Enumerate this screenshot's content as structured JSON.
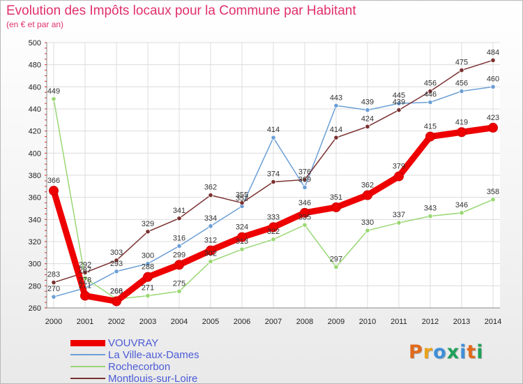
{
  "header": {
    "title": "Evolution des Impôts locaux pour la Commune par Habitant",
    "subtitle": "(en € et par an)"
  },
  "logo": {
    "text": "Proxiti",
    "letter_colors": [
      "#e06a1c",
      "#e8a21c",
      "#3f8fd8",
      "#1fa05a",
      "#3f8fd8",
      "#e06a1c",
      "#1fa05a"
    ]
  },
  "chart_data": {
    "type": "line",
    "title": "Evolution des Impôts locaux pour la Commune par Habitant",
    "subtitle": "(en € et par an)",
    "x": [
      "2000",
      "2001",
      "2002",
      "2003",
      "2004",
      "2005",
      "2006",
      "2007",
      "2008",
      "2009",
      "2010",
      "2011",
      "2012",
      "2013",
      "2014"
    ],
    "ylim": [
      260,
      500
    ],
    "yticks": [
      260,
      280,
      300,
      320,
      340,
      360,
      380,
      400,
      420,
      440,
      460,
      480,
      500
    ],
    "grid": true,
    "legend_position": "bottom-left",
    "series": [
      {
        "name": "VOUVRAY",
        "color": "#ee0000",
        "emphasis": true,
        "values": [
          366,
          271,
          266,
          288,
          299,
          312,
          324,
          333,
          346,
          351,
          362,
          379,
          415,
          419,
          423
        ],
        "labels": [
          "366",
          "271",
          "266",
          "288",
          "299",
          "312",
          "324",
          "333",
          "346",
          "351",
          "362",
          "379",
          "415",
          "419",
          "423"
        ]
      },
      {
        "name": "La Ville-aux-Dames",
        "color": "#6b9fd6",
        "emphasis": false,
        "values": [
          270,
          278,
          293,
          300,
          316,
          334,
          352,
          414,
          369,
          443,
          439,
          445,
          446,
          456,
          460
        ],
        "labels": [
          "270",
          "278",
          "293",
          "300",
          "316",
          "334",
          "352",
          "414",
          "369",
          "443",
          "439",
          "445",
          "446",
          "456",
          "460"
        ]
      },
      {
        "name": "Rochecorbon",
        "color": "#99d773",
        "emphasis": false,
        "values": [
          449,
          287,
          268,
          271,
          275,
          302,
          313,
          322,
          335,
          297,
          330,
          337,
          343,
          346,
          358
        ],
        "labels": [
          "449",
          "287",
          "268",
          "271",
          "275",
          "302",
          "313",
          "322",
          "335",
          "297",
          "330",
          "337",
          "343",
          "346",
          "358"
        ]
      },
      {
        "name": "Montlouis-sur-Loire",
        "color": "#7a3030",
        "emphasis": false,
        "values": [
          283,
          292,
          303,
          329,
          341,
          362,
          355,
          374,
          376,
          414,
          424,
          439,
          456,
          475,
          484
        ],
        "labels": [
          "283",
          "292",
          "303",
          "329",
          "341",
          "362",
          "355",
          "374",
          "376",
          "414",
          "424",
          "439",
          "456",
          "475",
          "484"
        ]
      }
    ]
  }
}
